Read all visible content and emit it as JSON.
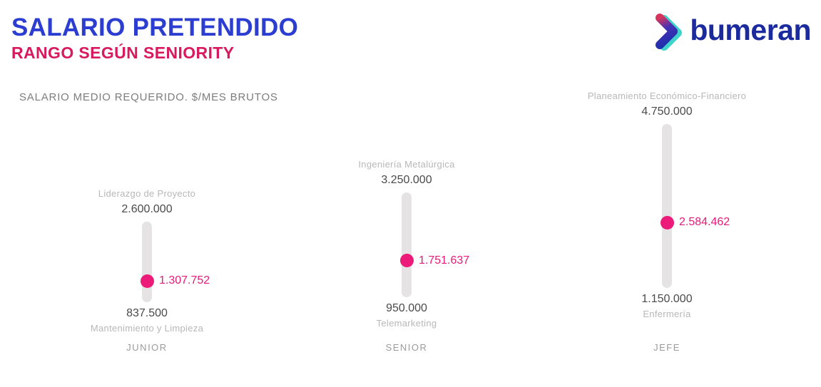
{
  "header": {
    "title": "SALARIO PRETENDIDO",
    "subtitle": "RANGO SEGÚN SENIORITY",
    "brand": "bumeran",
    "brand_icon": "boomerang-chevron-icon"
  },
  "axis_note": "SALARIO MEDIO REQUERIDO. $/MES BRUTOS",
  "chart_data": {
    "type": "range-dot",
    "title": "SALARIO PRETENDIDO",
    "subtitle": "RANGO SEGÚN SENIORITY",
    "ylabel": "SALARIO MEDIO REQUERIDO. $/MES BRUTOS",
    "categories": [
      "JUNIOR",
      "SENIOR",
      "JEFE"
    ],
    "series": [
      {
        "category": "JUNIOR",
        "max": 2600000,
        "max_display": "2.600.000",
        "max_label": "Liderazgo de Proyecto",
        "median": 1307752,
        "median_display": "1.307.752",
        "min": 837500,
        "min_display": "837.500",
        "min_label": "Mantenimiento y Limpieza"
      },
      {
        "category": "SENIOR",
        "max": 3250000,
        "max_display": "3.250.000",
        "max_label": "Ingeniería Metalúrgica",
        "median": 1751637,
        "median_display": "1.751.637",
        "min": 950000,
        "min_display": "950.000",
        "min_label": "Telemarketing"
      },
      {
        "category": "JEFE",
        "max": 4750000,
        "max_display": "4.750.000",
        "max_label": "Planeamiento Económico-Financiero",
        "median": 2584462,
        "median_display": "2.584.462",
        "min": 1150000,
        "min_display": "1.150.000",
        "min_label": "Enfermería"
      }
    ],
    "legend": "dot = salario medio pretendido; barra = rango mín–máx",
    "grid": false
  },
  "colors": {
    "title_blue": "#2c3ed1",
    "subtitle_pink": "#d8195e",
    "brand_navy": "#1b2b9e",
    "note_gray": "#7d7d7d",
    "value_dark": "#4a4a4a",
    "label_light": "#b9b7b7",
    "category_gray": "#9b9b9b",
    "bar_gray": "#e5e3e3",
    "dot_pink": "#ec1a78",
    "median_pink": "#e8197b",
    "logo_teal": "#3ed4cb",
    "logo_red": "#d8355c",
    "logo_blue": "#2130ad"
  }
}
